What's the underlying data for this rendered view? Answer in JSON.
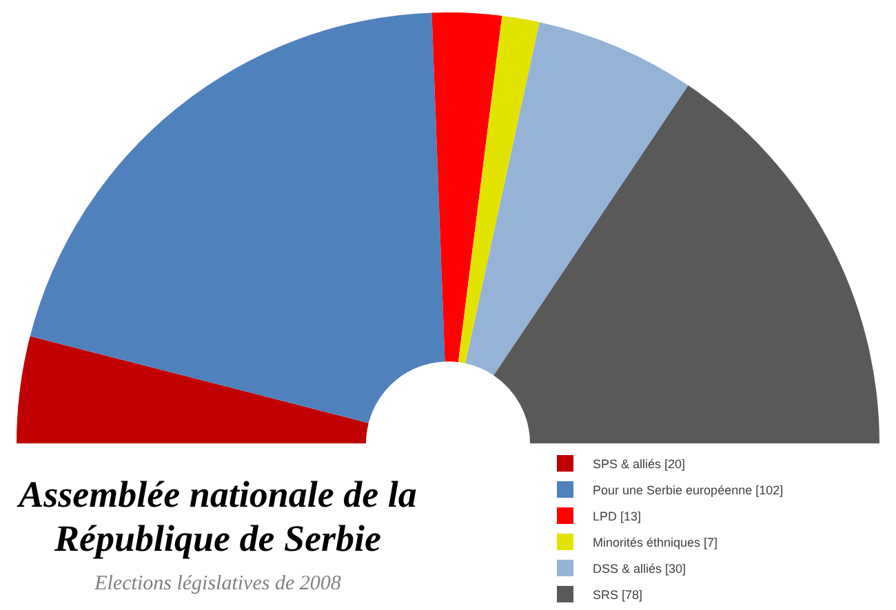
{
  "chart_data": {
    "type": "donut",
    "title": "Assemblée nationale de la République de Serbie",
    "subtitle": "Elections législatives de 2008",
    "categories": [
      "SPS & alliés [20]",
      "Pour une Serbie européenne [102]",
      "LPD [13]",
      "Minorités éthniques [7]",
      "DSS & alliés [30]",
      "SRS [78]"
    ],
    "values": [
      20,
      102,
      13,
      7,
      30,
      78
    ],
    "colors": [
      "#c00000",
      "#4f81bd",
      "#ff0000",
      "#e3e300",
      "#95b3d7",
      "#595959"
    ],
    "legend": "bottom right"
  }
}
